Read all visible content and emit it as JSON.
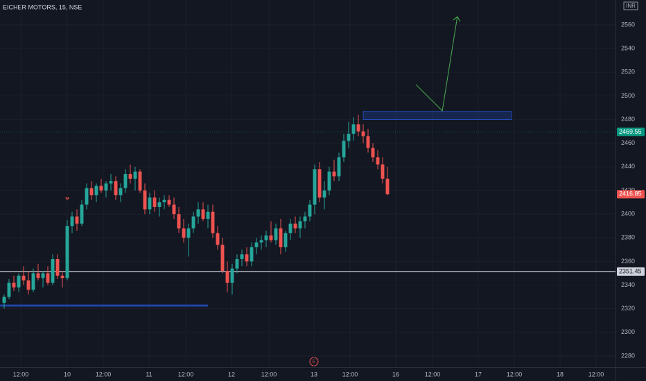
{
  "chart_data": {
    "type": "candlestick",
    "title": "EICHER MOTORS, 15, NSE",
    "currency": "INR",
    "up_color": "#26a69a",
    "down_color": "#ef5350",
    "xlim": [
      -0.857,
      126
    ],
    "ylim": [
      2270.6,
      2581.1
    ],
    "yticks": [
      2280,
      2300,
      2320,
      2340,
      2360,
      2380,
      2400,
      2420,
      2440,
      2460,
      2480,
      2500,
      2520,
      2540,
      2560
    ],
    "xticks": [
      {
        "value": 3.43,
        "label": "12:00"
      },
      {
        "value": 13,
        "label": "10"
      },
      {
        "value": 20.43,
        "label": "12:00"
      },
      {
        "value": 29.86,
        "label": "11"
      },
      {
        "value": 37.43,
        "label": "12:00"
      },
      {
        "value": 46.86,
        "label": "12"
      },
      {
        "value": 54.57,
        "label": "12:00"
      },
      {
        "value": 63.86,
        "label": "13"
      },
      {
        "value": 71.29,
        "label": "12:00"
      },
      {
        "value": 80.71,
        "label": "16"
      },
      {
        "value": 88.29,
        "label": "12:00"
      },
      {
        "value": 97.71,
        "label": "17"
      },
      {
        "value": 105.14,
        "label": "12:00"
      },
      {
        "value": 114.57,
        "label": "18"
      },
      {
        "value": 122,
        "label": "12:00"
      }
    ],
    "price_lines": [
      {
        "value": 2351.45,
        "color": "#d1d4dc"
      },
      {
        "value": 2469.55,
        "color": "#089981"
      }
    ],
    "zone": {
      "x": [
        74,
        104.57
      ],
      "y": [
        2480,
        2487
      ]
    },
    "support": {
      "x": [
        -0.857,
        42
      ],
      "y": 2322.7
    },
    "arrow": {
      "x": [
        84.86,
        90.3,
        93.4
      ],
      "y": [
        2509.6,
        2487.4,
        2567
      ]
    },
    "candles": [
      [
        2325,
        2332,
        2320,
        2330
      ],
      [
        2330,
        2345,
        2328,
        2342
      ],
      [
        2342,
        2348,
        2335,
        2338
      ],
      [
        2338,
        2350,
        2334,
        2348
      ],
      [
        2348,
        2356,
        2340,
        2344
      ],
      [
        2344,
        2352,
        2332,
        2336
      ],
      [
        2336,
        2354,
        2334,
        2350
      ],
      [
        2350,
        2358,
        2344,
        2346
      ],
      [
        2346,
        2352,
        2338,
        2350
      ],
      [
        2350,
        2356,
        2340,
        2342
      ],
      [
        2342,
        2366,
        2340,
        2362
      ],
      [
        2362,
        2366,
        2345,
        2348
      ],
      [
        2348,
        2352,
        2338,
        2346
      ],
      [
        2346,
        2395,
        2344,
        2390
      ],
      [
        2390,
        2402,
        2384,
        2398
      ],
      [
        2398,
        2404,
        2386,
        2392
      ],
      [
        2392,
        2412,
        2390,
        2408
      ],
      [
        2408,
        2426,
        2404,
        2422
      ],
      [
        2422,
        2428,
        2412,
        2416
      ],
      [
        2416,
        2426,
        2410,
        2424
      ],
      [
        2424,
        2430,
        2418,
        2420
      ],
      [
        2420,
        2428,
        2414,
        2426
      ],
      [
        2426,
        2434,
        2420,
        2428
      ],
      [
        2428,
        2432,
        2412,
        2416
      ],
      [
        2416,
        2426,
        2410,
        2422
      ],
      [
        2422,
        2438,
        2418,
        2434
      ],
      [
        2434,
        2442,
        2426,
        2430
      ],
      [
        2430,
        2440,
        2420,
        2436
      ],
      [
        2436,
        2438,
        2418,
        2420
      ],
      [
        2420,
        2426,
        2400,
        2404
      ],
      [
        2404,
        2418,
        2400,
        2414
      ],
      [
        2414,
        2420,
        2402,
        2406
      ],
      [
        2406,
        2414,
        2398,
        2410
      ],
      [
        2410,
        2416,
        2404,
        2412
      ],
      [
        2412,
        2416,
        2406,
        2408
      ],
      [
        2408,
        2414,
        2396,
        2400
      ],
      [
        2400,
        2406,
        2384,
        2388
      ],
      [
        2388,
        2396,
        2376,
        2380
      ],
      [
        2380,
        2392,
        2364,
        2388
      ],
      [
        2388,
        2402,
        2384,
        2398
      ],
      [
        2398,
        2410,
        2392,
        2404
      ],
      [
        2404,
        2410,
        2394,
        2396
      ],
      [
        2396,
        2408,
        2388,
        2402
      ],
      [
        2402,
        2408,
        2380,
        2384
      ],
      [
        2384,
        2390,
        2370,
        2374
      ],
      [
        2374,
        2380,
        2350,
        2352
      ],
      [
        2352,
        2360,
        2334,
        2342
      ],
      [
        2342,
        2358,
        2332,
        2354
      ],
      [
        2354,
        2366,
        2350,
        2362
      ],
      [
        2362,
        2370,
        2356,
        2366
      ],
      [
        2366,
        2372,
        2356,
        2360
      ],
      [
        2360,
        2376,
        2356,
        2372
      ],
      [
        2372,
        2380,
        2366,
        2376
      ],
      [
        2376,
        2382,
        2370,
        2378
      ],
      [
        2378,
        2386,
        2372,
        2382
      ],
      [
        2382,
        2394,
        2376,
        2378
      ],
      [
        2378,
        2392,
        2374,
        2388
      ],
      [
        2388,
        2396,
        2366,
        2372
      ],
      [
        2372,
        2386,
        2368,
        2384
      ],
      [
        2384,
        2396,
        2378,
        2392
      ],
      [
        2392,
        2398,
        2384,
        2388
      ],
      [
        2388,
        2398,
        2380,
        2394
      ],
      [
        2394,
        2402,
        2388,
        2398
      ],
      [
        2398,
        2412,
        2394,
        2408
      ],
      [
        2408,
        2442,
        2400,
        2438
      ],
      [
        2438,
        2444,
        2410,
        2414
      ],
      [
        2414,
        2428,
        2404,
        2420
      ],
      [
        2420,
        2440,
        2416,
        2436
      ],
      [
        2436,
        2446,
        2428,
        2432
      ],
      [
        2432,
        2452,
        2428,
        2448
      ],
      [
        2448,
        2468,
        2444,
        2462
      ],
      [
        2462,
        2478,
        2456,
        2468
      ],
      [
        2468,
        2482,
        2462,
        2476
      ],
      [
        2476,
        2484,
        2466,
        2470
      ],
      [
        2470,
        2476,
        2460,
        2466
      ],
      [
        2466,
        2472,
        2452,
        2456
      ],
      [
        2456,
        2460,
        2444,
        2448
      ],
      [
        2448,
        2454,
        2438,
        2442
      ],
      [
        2442,
        2448,
        2426,
        2430
      ],
      [
        2430,
        2440,
        2416,
        2416.85
      ]
    ]
  }
}
